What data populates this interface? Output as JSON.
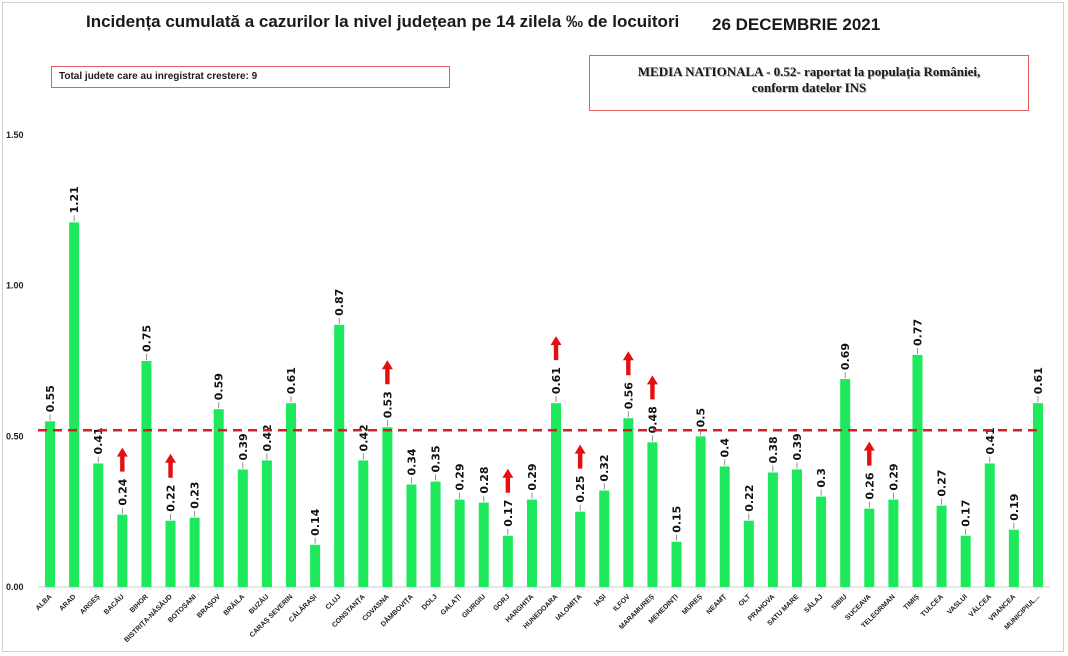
{
  "header": {
    "title": "Incidența cumulată a cazurilor la nivel județean pe 14 zilela ‰ de locuitori",
    "date": "26 DECEMBRIE 2021"
  },
  "annotations": {
    "increase_count": "Total judete care au inregistrat crestere: 9",
    "media_line1": "MEDIA NATIONALA - 0.52- raportat la populația României,",
    "media_line2": "conform datelor INS"
  },
  "colors": {
    "bar": "#1ee85c",
    "mean_line": "#d42020",
    "arrow": "#e41010"
  },
  "chart_data": {
    "type": "bar",
    "title": "Incidența cumulată a cazurilor la nivel județean pe 14 zilela ‰ de locuitori",
    "xlabel": "",
    "ylabel": "",
    "ylim": [
      0,
      1.5
    ],
    "yticks": [
      "0.00",
      "0.50",
      "1.00",
      "1.50"
    ],
    "grid": false,
    "categories": [
      "ALBA",
      "ARAD",
      "ARGEȘ",
      "BACĂU",
      "BIHOR",
      "BISTRIȚA-NĂSĂUD",
      "BOTOȘANI",
      "BRAȘOV",
      "BRĂILA",
      "BUZĂU",
      "CARAȘ SEVERIN",
      "CĂLĂRAȘI",
      "CLUJ",
      "CONSTANȚA",
      "COVASNA",
      "DÂMBOVIȚA",
      "DOLJ",
      "GALAȚI",
      "GIURGIU",
      "GORJ",
      "HARGHITA",
      "HUNEDOARA",
      "IALOMIȚA",
      "IAȘI",
      "ILFOV",
      "MARAMUREȘ",
      "MEHEDINȚI",
      "MUREȘ",
      "NEAMȚ",
      "OLT",
      "PRAHOVA",
      "SATU MARE",
      "SĂLAJ",
      "SIBIU",
      "SUCEAVA",
      "TELEORMAN",
      "TIMIȘ",
      "TULCEA",
      "VASLUI",
      "VÂLCEA",
      "VRANCEA",
      "MUNICIPIUL..."
    ],
    "values": [
      0.55,
      1.21,
      0.41,
      0.24,
      0.75,
      0.22,
      0.23,
      0.59,
      0.39,
      0.42,
      0.61,
      0.14,
      0.87,
      0.42,
      0.53,
      0.34,
      0.35,
      0.29,
      0.28,
      0.17,
      0.29,
      0.61,
      0.25,
      0.32,
      0.56,
      0.48,
      0.15,
      0.5,
      0.4,
      0.22,
      0.38,
      0.39,
      0.3,
      0.69,
      0.26,
      0.29,
      0.77,
      0.27,
      0.17,
      0.41,
      0.19,
      0.61
    ],
    "value_labels": [
      "0.55",
      "1.21",
      "0.41",
      "0.24",
      "0.75",
      "0.22",
      "0.23",
      "0.59",
      "0.39",
      "0.42",
      "0.61",
      "0.14",
      "0.87",
      "0.42",
      "0.53",
      "0.34",
      "0.35",
      "0.29",
      "0.28",
      "0.17",
      "0.29",
      "0.61",
      "0.25",
      "0.32",
      "0.56",
      "0.48",
      "0.15",
      "0.5",
      "0.4",
      "0.22",
      "0.38",
      "0.39",
      "0.3",
      "0.69",
      "0.26",
      "0.29",
      "0.77",
      "0.27",
      "0.17",
      "0.41",
      "0.19",
      "0.61"
    ],
    "increase_markers": [
      "BACĂU",
      "BISTRIȚA-NĂSĂUD",
      "COVASNA",
      "GORJ",
      "HUNEDOARA",
      "IALOMIȚA",
      "ILFOV",
      "MARAMUREȘ",
      "SUCEAVA"
    ],
    "reference_line": 0.52
  }
}
